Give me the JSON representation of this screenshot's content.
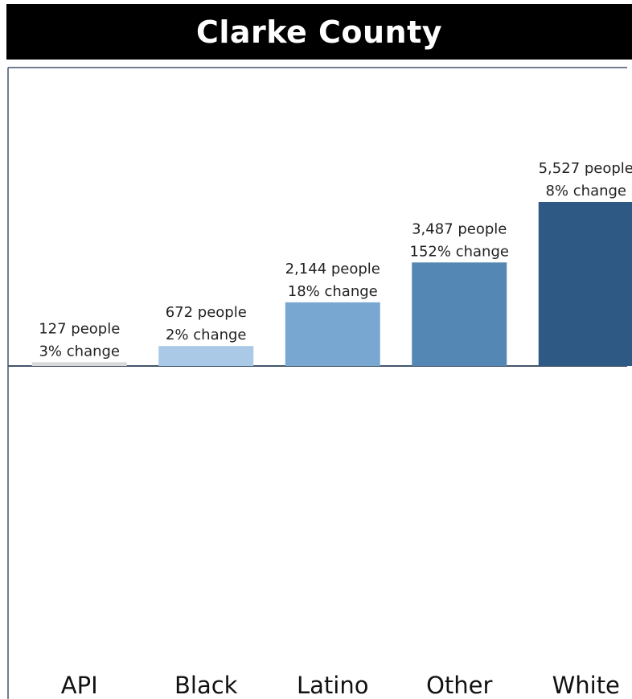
{
  "title": "Clarke County",
  "chart_data": {
    "type": "bar",
    "categories": [
      "API",
      "Black",
      "Latino",
      "Other",
      "White"
    ],
    "values": [
      127,
      672,
      2144,
      3487,
      5527
    ],
    "value_labels": [
      "127 people",
      "672 people",
      "2,144 people",
      "3,487 people",
      "5,527 people"
    ],
    "change_labels": [
      "3% change",
      "2% change",
      "18% change",
      "152% change",
      "8% change"
    ],
    "bar_colors": [
      "#d9d9d9",
      "#a9c9e6",
      "#78a8d1",
      "#5587b5",
      "#2e5984"
    ],
    "ylim": [
      0,
      5527
    ],
    "xlabel": "",
    "ylabel": "",
    "grid": false,
    "legend": "none"
  }
}
